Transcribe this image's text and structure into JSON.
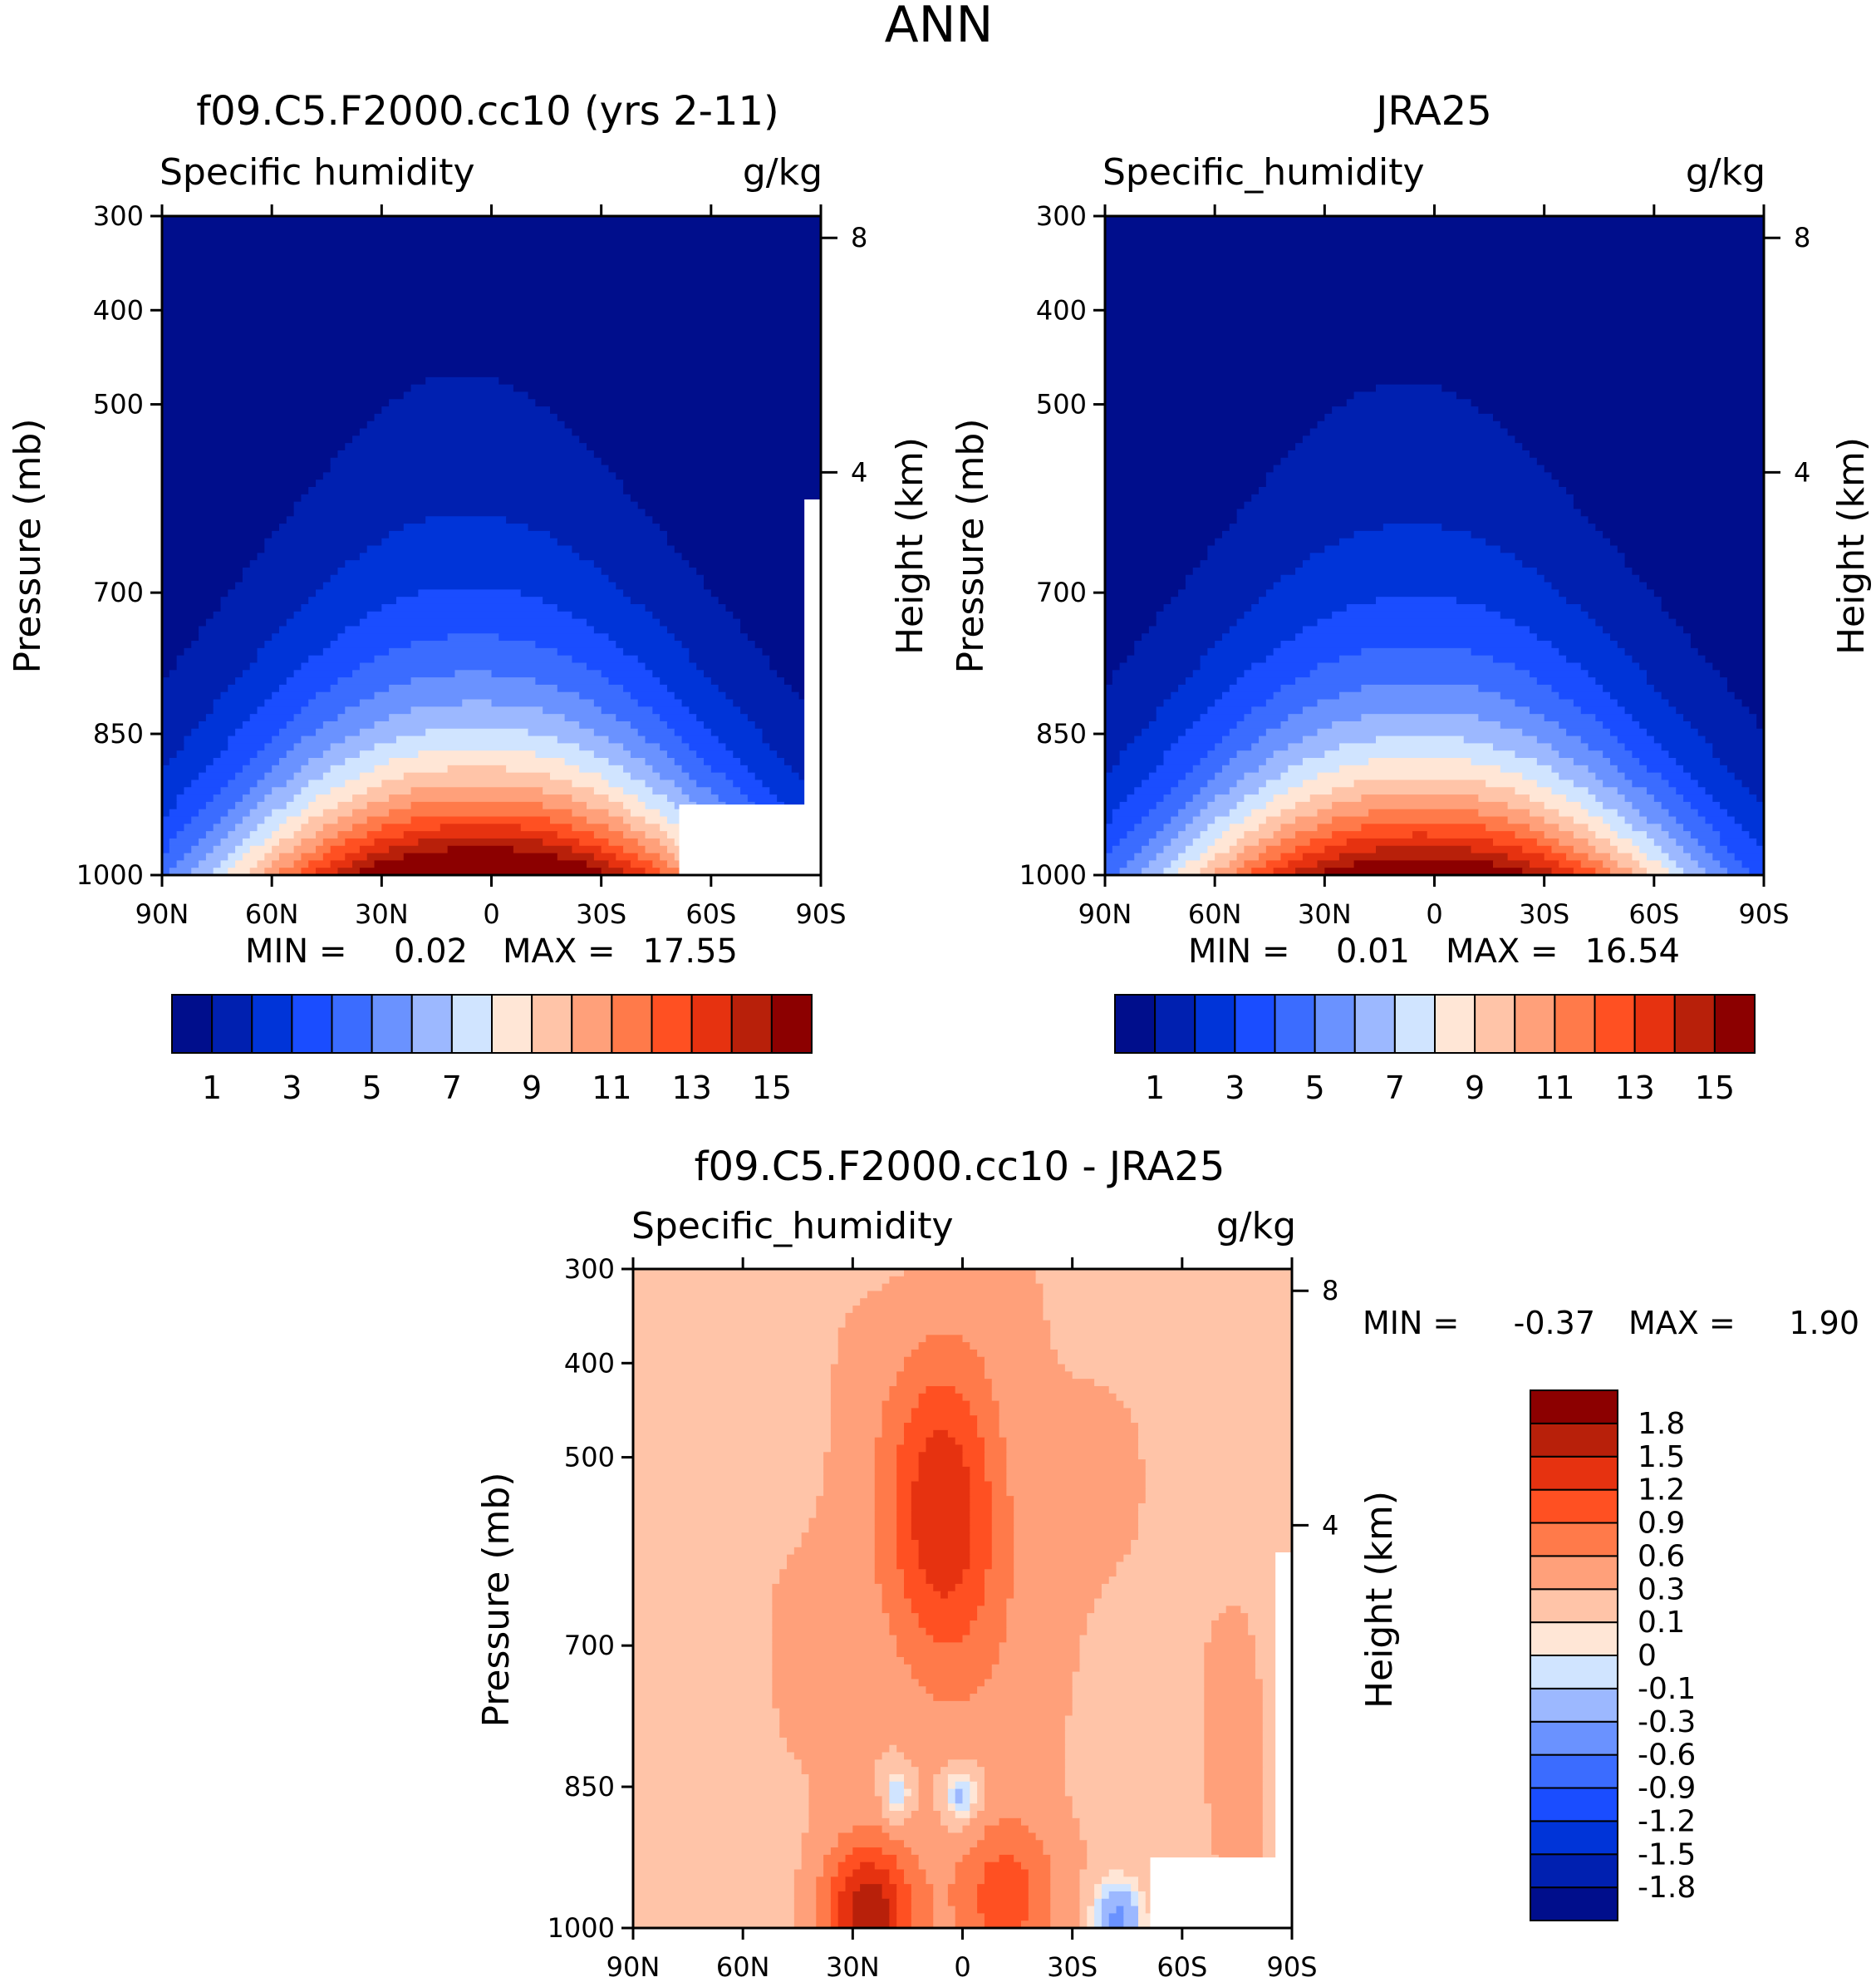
{
  "main_title": "ANN",
  "chart_data": [
    {
      "type": "heatmap",
      "id": "model",
      "title": "f09.C5.F2000.cc10 (yrs 2-11)",
      "left_label": "Specific humidity",
      "right_label": "g/kg",
      "ylabel": "Pressure (mb)",
      "ylabel2": "Height (km)",
      "x_ticks": [
        "90N",
        "60N",
        "30N",
        "0",
        "30S",
        "60S",
        "90S"
      ],
      "x_range": [
        90,
        -90
      ],
      "y_ticks": [
        300,
        400,
        500,
        700,
        850,
        1000
      ],
      "y_range": [
        300,
        1000
      ],
      "height_ticks": [
        8,
        4
      ],
      "min_label": "MIN =",
      "min_value": "0.02",
      "max_label": "MAX =",
      "max_value": "17.55",
      "peak": 17.55,
      "topo_blank": "south",
      "colors": [
        "#000E8C",
        "#0020B0",
        "#0034D8",
        "#1A4DFF",
        "#3B6CFF",
        "#6A92FF",
        "#9CB8FF",
        "#D0E4FF",
        "#FFE6D6",
        "#FFC4A8",
        "#FFA07A",
        "#FF7A4A",
        "#FF5022",
        "#E63210",
        "#B8200A",
        "#8C0000"
      ],
      "levels": [
        1,
        2,
        3,
        4,
        5,
        6,
        7,
        8,
        9,
        10,
        11,
        12,
        13,
        14,
        15
      ],
      "colorbar_labels": [
        "1",
        "3",
        "5",
        "7",
        "9",
        "11",
        "13",
        "15"
      ]
    },
    {
      "type": "heatmap",
      "id": "obs",
      "title": "JRA25",
      "left_label": "Specific_humidity",
      "right_label": "g/kg",
      "ylabel": "Pressure (mb)",
      "ylabel2": "Height (km)",
      "x_ticks": [
        "90N",
        "60N",
        "30N",
        "0",
        "30S",
        "60S",
        "90S"
      ],
      "x_range": [
        90,
        -90
      ],
      "y_ticks": [
        300,
        400,
        500,
        700,
        850,
        1000
      ],
      "y_range": [
        300,
        1000
      ],
      "height_ticks": [
        8,
        4
      ],
      "min_label": "MIN =",
      "min_value": "0.01",
      "max_label": "MAX =",
      "max_value": "16.54",
      "peak": 16.54,
      "topo_blank": "none",
      "colors": [
        "#000E8C",
        "#0020B0",
        "#0034D8",
        "#1A4DFF",
        "#3B6CFF",
        "#6A92FF",
        "#9CB8FF",
        "#D0E4FF",
        "#FFE6D6",
        "#FFC4A8",
        "#FFA07A",
        "#FF7A4A",
        "#FF5022",
        "#E63210",
        "#B8200A",
        "#8C0000"
      ],
      "levels": [
        1,
        2,
        3,
        4,
        5,
        6,
        7,
        8,
        9,
        10,
        11,
        12,
        13,
        14,
        15
      ],
      "colorbar_labels": [
        "1",
        "3",
        "5",
        "7",
        "9",
        "11",
        "13",
        "15"
      ]
    },
    {
      "type": "heatmap",
      "id": "diff",
      "title": "f09.C5.F2000.cc10 - JRA25",
      "left_label": "Specific_humidity",
      "right_label": "g/kg",
      "ylabel": "Pressure (mb)",
      "ylabel2": "Height (km)",
      "x_ticks": [
        "90N",
        "60N",
        "30N",
        "0",
        "30S",
        "60S",
        "90S"
      ],
      "x_range": [
        90,
        -90
      ],
      "y_ticks": [
        300,
        400,
        500,
        700,
        850,
        1000
      ],
      "y_range": [
        300,
        1000
      ],
      "height_ticks": [
        8,
        4
      ],
      "min_label": "MIN =",
      "min_value": "-0.37",
      "max_label": "MAX =",
      "max_value": "1.90",
      "topo_blank": "south",
      "colors": [
        "#000E8C",
        "#0020B0",
        "#0034D8",
        "#1A4DFF",
        "#3B6CFF",
        "#6A92FF",
        "#9CB8FF",
        "#D0E4FF",
        "#FFE6D6",
        "#FFC4A8",
        "#FFA07A",
        "#FF7A4A",
        "#FF5022",
        "#E63210",
        "#B8200A",
        "#8C0000"
      ],
      "levels": [
        -1.8,
        -1.5,
        -1.2,
        -0.9,
        -0.6,
        -0.3,
        -0.1,
        0,
        0.1,
        0.3,
        0.6,
        0.9,
        1.2,
        1.5,
        1.8
      ],
      "colorbar_labels": [
        "1.8",
        "1.5",
        "1.2",
        "0.9",
        "0.6",
        "0.3",
        "0.1",
        "0",
        "-0.1",
        "-0.3",
        "-0.6",
        "-0.9",
        "-1.2",
        "-1.5",
        "-1.8"
      ]
    }
  ]
}
